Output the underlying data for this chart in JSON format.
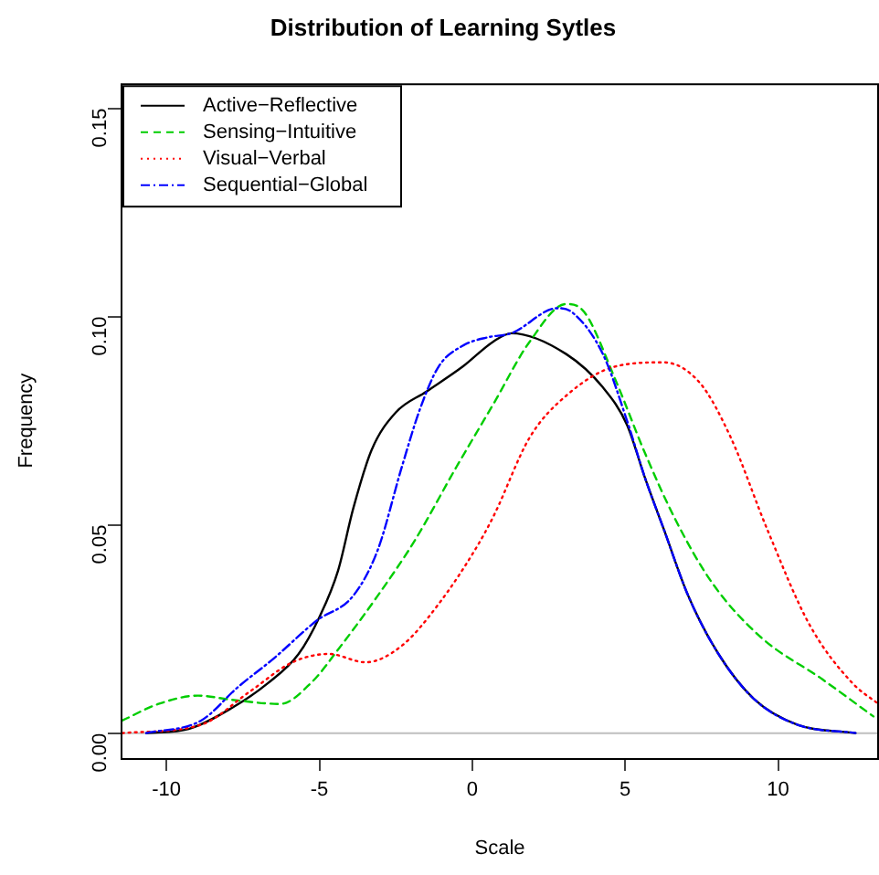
{
  "chart_data": {
    "type": "line",
    "title": "Distribution of Learning Sytles",
    "xlabel": "Scale",
    "ylabel": "Frequency",
    "xlim": [
      -11.5,
      13.3
    ],
    "ylim": [
      -0.006,
      0.156
    ],
    "xticks": [
      -10,
      -5,
      0,
      5,
      10
    ],
    "yticks": [
      {
        "value": 0,
        "label": "0.00"
      },
      {
        "value": 0.05,
        "label": "0.05"
      },
      {
        "value": 0.1,
        "label": "0.10"
      },
      {
        "value": 0.15,
        "label": "0.15"
      }
    ],
    "grid": false,
    "legend": "top left",
    "marker": "none",
    "ref_lines": [
      {
        "axis": "y",
        "value": 0,
        "label": null,
        "color": "#bebebe"
      }
    ],
    "series": [
      {
        "name": "Active−Reflective",
        "color": "#000000",
        "line_style": "solid",
        "x": [
          -10.66,
          -9.27,
          -7.87,
          -6.68,
          -5.68,
          -4.99,
          -4.39,
          -3.89,
          -3.29,
          -2.5,
          -1.5,
          -0.31,
          0.69,
          1.28,
          3.07,
          4.27,
          5.06,
          5.66,
          6.26,
          7.06,
          8.05,
          9.24,
          10.64,
          12.53
        ],
        "values": [
          0,
          0.001,
          0.006,
          0.012,
          0.019,
          0.028,
          0.039,
          0.054,
          0.068,
          0.077,
          0.082,
          0.088,
          0.094,
          0.096,
          0.091,
          0.083,
          0.074,
          0.061,
          0.049,
          0.033,
          0.019,
          0.008,
          0.002,
          0
        ]
      },
      {
        "name": "Sensing−Intuitive",
        "color": "#00cd00",
        "line_style": "dashed",
        "x": [
          -11.45,
          -10.26,
          -8.97,
          -7.87,
          -6.28,
          -5.28,
          -4.29,
          -3.09,
          -1.9,
          -0.51,
          0.69,
          1.88,
          3.07,
          3.67,
          4.67,
          5.66,
          6.66,
          7.85,
          9.44,
          11.43,
          13.12
        ],
        "values": [
          0.003,
          0.007,
          0.009,
          0.008,
          0.007,
          0.012,
          0.021,
          0.033,
          0.046,
          0.064,
          0.079,
          0.094,
          0.103,
          0.101,
          0.085,
          0.067,
          0.051,
          0.036,
          0.023,
          0.013,
          0.004
        ]
      },
      {
        "name": "Visual−Verbal",
        "color": "#ff0000",
        "line_style": "dotted",
        "x": [
          -11.45,
          -8.87,
          -7.27,
          -5.88,
          -4.69,
          -3.49,
          -2.3,
          -1.1,
          0.09,
          0.69,
          1.88,
          3.07,
          4.67,
          6.26,
          7.45,
          8.45,
          9.64,
          11.03,
          12.43,
          13.28
        ],
        "values": [
          0,
          0.002,
          0.01,
          0.017,
          0.019,
          0.017,
          0.021,
          0.031,
          0.044,
          0.052,
          0.071,
          0.081,
          0.088,
          0.089,
          0.084,
          0.071,
          0.049,
          0.026,
          0.012,
          0.007
        ]
      },
      {
        "name": "Sequential−Global",
        "color": "#0000ff",
        "line_style": "dashdot",
        "x": [
          -10.66,
          -8.87,
          -7.67,
          -6.48,
          -5.09,
          -3.89,
          -3.09,
          -2.3,
          -1.7,
          -1.1,
          -0.31,
          0.49,
          1.28,
          2.78,
          3.27,
          4.27,
          5.06,
          5.66,
          6.26,
          7.06,
          8.05,
          9.24,
          10.64,
          12.53
        ],
        "values": [
          0,
          0.003,
          0.011,
          0.018,
          0.027,
          0.033,
          0.044,
          0.064,
          0.078,
          0.088,
          0.093,
          0.095,
          0.096,
          0.102,
          0.101,
          0.091,
          0.075,
          0.061,
          0.049,
          0.033,
          0.019,
          0.008,
          0.002,
          0
        ]
      }
    ]
  }
}
